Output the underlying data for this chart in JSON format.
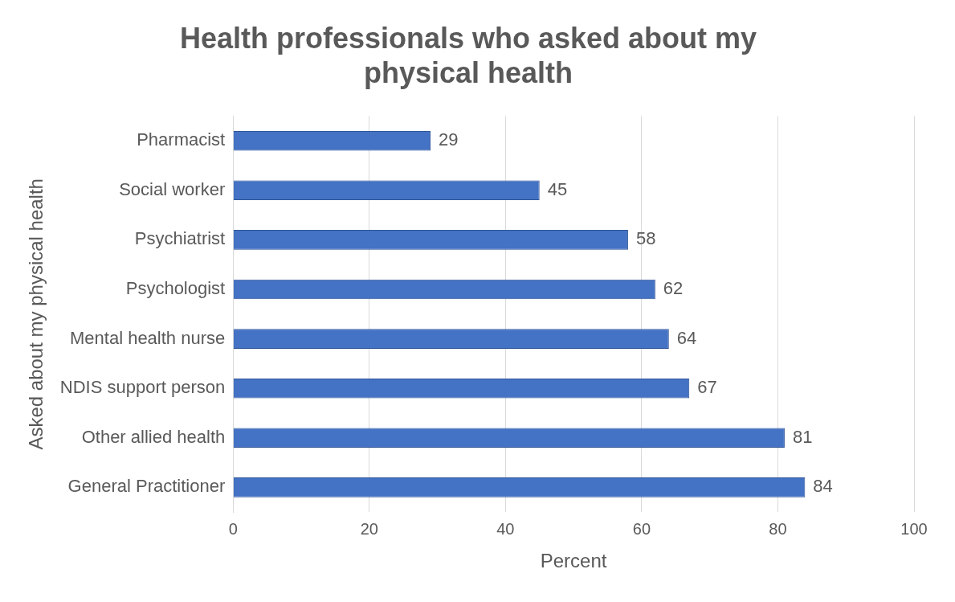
{
  "chart_data": {
    "type": "bar",
    "orientation": "horizontal",
    "title": "Health professionals who asked about my physical health",
    "xlabel": "Percent",
    "ylabel": "Asked about my physical health",
    "categories": [
      "Pharmacist",
      "Social worker",
      "Psychiatrist",
      "Psychologist",
      "Mental health nurse",
      "NDIS support person",
      "Other allied health",
      "General Practitioner"
    ],
    "values": [
      29,
      45,
      58,
      62,
      64,
      67,
      81,
      84
    ],
    "color": "#4472c4",
    "xlim": [
      0,
      100
    ],
    "xticks": [
      0,
      20,
      40,
      60,
      80,
      100
    ],
    "grid": "x",
    "data_labels": true,
    "legend": false
  }
}
